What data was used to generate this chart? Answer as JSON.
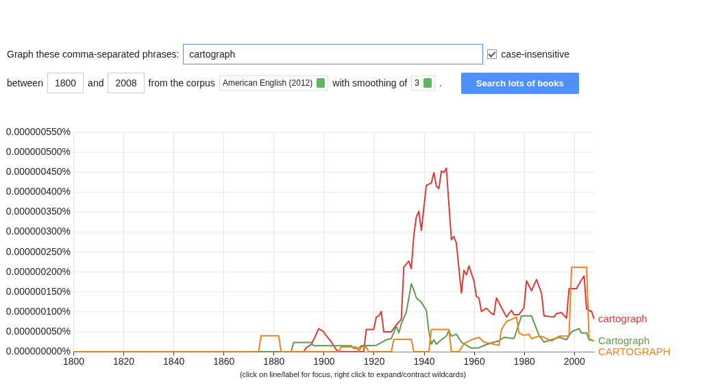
{
  "chart_data": {
    "type": "line",
    "annotations": [
      "Graph these comma-separated phrases:",
      "cartograph",
      "case-insensitive",
      "between",
      "1800",
      "and",
      "2008",
      "from the corpus",
      "American English (2012)",
      "with smoothing of",
      "3",
      ".",
      "Search lots of books",
      "(click on line/label for focus, right click to expand/contract wildcards)"
    ],
    "xlim": [
      1800,
      2008
    ],
    "xticks": [
      1800,
      1820,
      1840,
      1860,
      1880,
      1900,
      1920,
      1940,
      1960,
      1980,
      2000
    ],
    "ylim": [
      0,
      5.5e-07
    ],
    "yticks": [
      {
        "value": 0,
        "label": "0.000000000%"
      },
      {
        "value": 5e-08,
        "label": "0.000000050%"
      },
      {
        "value": 1e-07,
        "label": "0.000000100%"
      },
      {
        "value": 1.5e-07,
        "label": "0.000000150%"
      },
      {
        "value": 2e-07,
        "label": "0.000000200%"
      },
      {
        "value": 2.5e-07,
        "label": "0.000000250%"
      },
      {
        "value": 3e-07,
        "label": "0.000000300%"
      },
      {
        "value": 3.5e-07,
        "label": "0.000000350%"
      },
      {
        "value": 4e-07,
        "label": "0.000000400%"
      },
      {
        "value": 4.5e-07,
        "label": "0.000000450%"
      },
      {
        "value": 5e-07,
        "label": "0.000000500%"
      },
      {
        "value": 5.5e-07,
        "label": "0.000000550%"
      }
    ],
    "grid": true,
    "series": [
      {
        "name": "cartograph",
        "color": "#d93a35",
        "x": [
          1800,
          1892,
          1893,
          1895,
          1896,
          1898,
          1900,
          1901,
          1903,
          1905,
          1906,
          1916,
          1917,
          1920,
          1921,
          1922,
          1923,
          1924,
          1927,
          1929,
          1931,
          1932,
          1934,
          1935,
          1936,
          1937,
          1938,
          1939,
          1941,
          1943,
          1944,
          1945,
          1946,
          1947,
          1948,
          1949,
          1951,
          1952,
          1953,
          1955,
          1956,
          1957,
          1958,
          1960,
          1961,
          1962,
          1963,
          1965,
          1967,
          1968,
          1969,
          1971,
          1973,
          1975,
          1976,
          1978,
          1980,
          1981,
          1983,
          1985,
          1987,
          1988,
          1992,
          1993,
          1995,
          1997,
          1998,
          2001,
          2002,
          2004,
          2005,
          2007,
          2008
        ],
        "values": [
          0,
          0,
          1e-08,
          1.8e-08,
          3e-08,
          5.8e-08,
          5e-08,
          4e-08,
          2.5e-08,
          5e-09,
          0,
          0,
          5.6e-08,
          5.6e-08,
          8.7e-08,
          9e-08,
          1.01e-07,
          5e-08,
          5e-08,
          6.7e-08,
          8.1e-08,
          2.12e-07,
          2.27e-07,
          2.08e-07,
          2.92e-07,
          3.38e-07,
          3.52e-07,
          3.04e-07,
          4.17e-07,
          4.23e-07,
          4.49e-07,
          4.15e-07,
          4.09e-07,
          4.53e-07,
          4.49e-07,
          4.6e-07,
          2.81e-07,
          2.89e-07,
          2.72e-07,
          1.47e-07,
          2.04e-07,
          1.93e-07,
          2.15e-07,
          1.78e-07,
          1.38e-07,
          1.35e-07,
          1.01e-07,
          1.09e-07,
          9.6e-08,
          9.3e-08,
          1.35e-07,
          1.11e-07,
          8.7e-08,
          1.04e-07,
          9.3e-08,
          9.3e-08,
          1.1e-07,
          1.78e-07,
          1.53e-07,
          1.81e-07,
          1.47e-07,
          9e-08,
          8.7e-08,
          9.6e-08,
          9.8e-08,
          8.4e-08,
          1.58e-07,
          1.58e-07,
          1.7e-07,
          1.9e-07,
          1.07e-07,
          1.01e-07,
          8.2e-08
        ]
      },
      {
        "name": "Cartograph",
        "color": "#5f9a4c",
        "x": [
          1800,
          1887,
          1888,
          1895,
          1896,
          1911,
          1912,
          1914,
          1915,
          1921,
          1925,
          1927,
          1929,
          1930,
          1931,
          1933,
          1935,
          1936,
          1937,
          1939,
          1941,
          1942,
          1943,
          1944,
          1945,
          1947,
          1949,
          1950,
          1951,
          1953,
          1955,
          1957,
          1959,
          1962,
          1965,
          1968,
          1970,
          1972,
          1976,
          1978,
          1979,
          1983,
          1986,
          1988,
          1991,
          1994,
          1997,
          1999,
          2002,
          2003,
          2005,
          2006,
          2008
        ],
        "values": [
          0,
          0,
          2.3e-08,
          2.3e-08,
          1.5e-08,
          1.5e-08,
          8e-09,
          8e-09,
          1.5e-08,
          1.6e-08,
          3e-08,
          3.3e-08,
          6.4e-08,
          4.7e-08,
          7e-08,
          9.9e-08,
          1.7e-07,
          1.55e-07,
          1.35e-07,
          1.24e-07,
          1.04e-07,
          5e-08,
          1.9e-08,
          3e-08,
          1.9e-08,
          3e-08,
          3.9e-08,
          5.3e-08,
          3.9e-08,
          4.4e-08,
          2.4e-08,
          1.6e-08,
          9e-09,
          1e-08,
          1.8e-08,
          2.4e-08,
          2.7e-08,
          3.6e-08,
          3.3e-08,
          7e-08,
          9e-08,
          9e-08,
          4.1e-08,
          2.4e-08,
          3e-08,
          3.6e-08,
          3e-08,
          5e-08,
          5.8e-08,
          4.7e-08,
          4.7e-08,
          3e-08,
          2.7e-08
        ]
      },
      {
        "name": "CARTOGRAPH",
        "color": "#f0821e",
        "x": [
          1800,
          1874,
          1875,
          1882,
          1883,
          1906,
          1907,
          1913,
          1914,
          1915,
          1917,
          1918,
          1927,
          1928,
          1935,
          1936,
          1942,
          1943,
          1950,
          1951,
          1954,
          1956,
          1959,
          1962,
          1964,
          1968,
          1970,
          1971,
          1973,
          1975,
          1977,
          1978,
          1980,
          1982,
          1983,
          1986,
          1988,
          1991,
          1994,
          1998,
          1999,
          2005,
          2006,
          2008
        ],
        "values": [
          0,
          0,
          4e-08,
          4e-08,
          0,
          0,
          1.2e-08,
          1.2e-08,
          0,
          1.2e-08,
          1.2e-08,
          0,
          0,
          3.1e-08,
          3.1e-08,
          0,
          0,
          5.6e-08,
          5.6e-08,
          0,
          0,
          2e-08,
          3e-08,
          3.6e-08,
          2.4e-08,
          1.9e-08,
          1.6e-08,
          5.6e-08,
          7.6e-08,
          8.1e-08,
          8.7e-08,
          4.7e-08,
          4.1e-08,
          4.4e-08,
          3.3e-08,
          3.9e-08,
          3.6e-08,
          2.7e-08,
          3.9e-08,
          3.9e-08,
          2.12e-07,
          2.12e-07,
          3.3e-08,
          2.7e-08
        ]
      }
    ]
  }
}
